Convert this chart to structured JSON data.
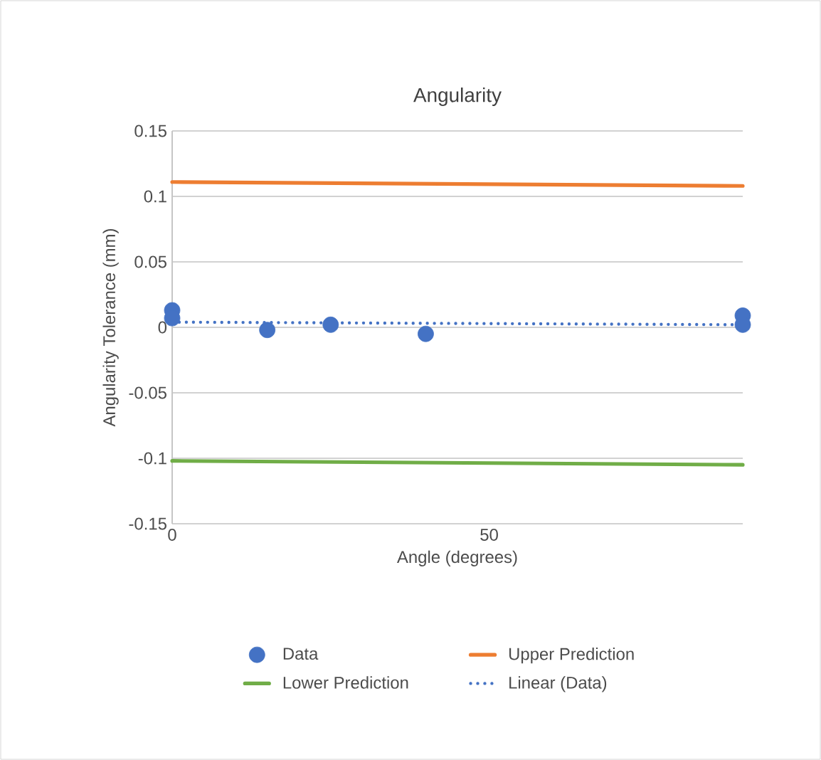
{
  "chart_data": {
    "type": "scatter",
    "title": "Angularity",
    "xlabel": "Angle (degrees)",
    "ylabel": "Angularity Tolerance (mm)",
    "xlim": [
      0,
      90
    ],
    "xticks": [
      0,
      50
    ],
    "ylim": [
      -0.15,
      0.15
    ],
    "yticks": [
      -0.15,
      -0.1,
      -0.05,
      0,
      0.05,
      0.1,
      0.15
    ],
    "grid": "y",
    "legend": "bottom",
    "series": [
      {
        "name": "Data",
        "marker": "circle",
        "color": "#4472c4",
        "x": [
          0,
          0,
          15,
          25,
          40,
          90,
          90
        ],
        "values": [
          0.013,
          0.007,
          -0.002,
          0.002,
          -0.005,
          0.009,
          0.002
        ]
      },
      {
        "name": "Upper Prediction",
        "type": "line",
        "marker": "none",
        "line_style": "solid",
        "color": "#ed7d31",
        "x": [
          0,
          90
        ],
        "values": [
          0.111,
          0.108
        ]
      },
      {
        "name": "Lower Prediction",
        "type": "line",
        "marker": "none",
        "line_style": "solid",
        "color": "#70ad47",
        "x": [
          0,
          90
        ],
        "values": [
          -0.102,
          -0.105
        ]
      },
      {
        "name": "Linear (Data)",
        "type": "line",
        "marker": "none",
        "line_style": "dotted",
        "color": "#4472c4",
        "x": [
          0,
          90
        ],
        "values": [
          0.004,
          0.002
        ]
      }
    ]
  }
}
